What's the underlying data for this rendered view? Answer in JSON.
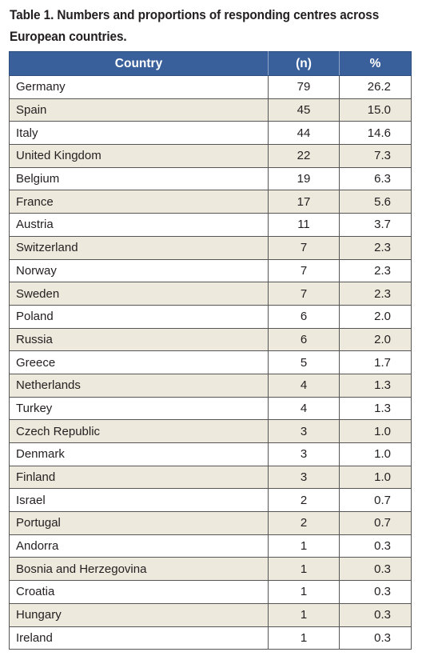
{
  "caption": {
    "line1": "Table 1. Numbers and proportions of responding centres across",
    "line2": "European countries."
  },
  "table": {
    "headers": [
      "Country",
      "(n)",
      "%"
    ],
    "rows": [
      {
        "country": "Germany",
        "n": "79",
        "pct": "26.2"
      },
      {
        "country": "Spain",
        "n": "45",
        "pct": "15.0"
      },
      {
        "country": "Italy",
        "n": "44",
        "pct": "14.6"
      },
      {
        "country": "United Kingdom",
        "n": "22",
        "pct": "7.3"
      },
      {
        "country": "Belgium",
        "n": "19",
        "pct": "6.3"
      },
      {
        "country": "France",
        "n": "17",
        "pct": "5.6"
      },
      {
        "country": "Austria",
        "n": "11",
        "pct": "3.7"
      },
      {
        "country": "Switzerland",
        "n": "7",
        "pct": "2.3"
      },
      {
        "country": "Norway",
        "n": "7",
        "pct": "2.3"
      },
      {
        "country": "Sweden",
        "n": "7",
        "pct": "2.3"
      },
      {
        "country": "Poland",
        "n": "6",
        "pct": "2.0"
      },
      {
        "country": "Russia",
        "n": "6",
        "pct": "2.0"
      },
      {
        "country": "Greece",
        "n": "5",
        "pct": "1.7"
      },
      {
        "country": "Netherlands",
        "n": "4",
        "pct": "1.3"
      },
      {
        "country": "Turkey",
        "n": "4",
        "pct": "1.3"
      },
      {
        "country": "Czech Republic",
        "n": "3",
        "pct": "1.0"
      },
      {
        "country": "Denmark",
        "n": "3",
        "pct": "1.0"
      },
      {
        "country": "Finland",
        "n": "3",
        "pct": "1.0"
      },
      {
        "country": "Israel",
        "n": "2",
        "pct": "0.7"
      },
      {
        "country": "Portugal",
        "n": "2",
        "pct": "0.7"
      },
      {
        "country": "Andorra",
        "n": "1",
        "pct": "0.3"
      },
      {
        "country": "Bosnia and Herzegovina",
        "n": "1",
        "pct": "0.3"
      },
      {
        "country": "Croatia",
        "n": "1",
        "pct": "0.3"
      },
      {
        "country": "Hungary",
        "n": "1",
        "pct": "0.3"
      },
      {
        "country": "Ireland",
        "n": "1",
        "pct": "0.3"
      }
    ]
  },
  "colors": {
    "header_bg": "#3a609c",
    "stripe_bg": "#ede9dc"
  }
}
